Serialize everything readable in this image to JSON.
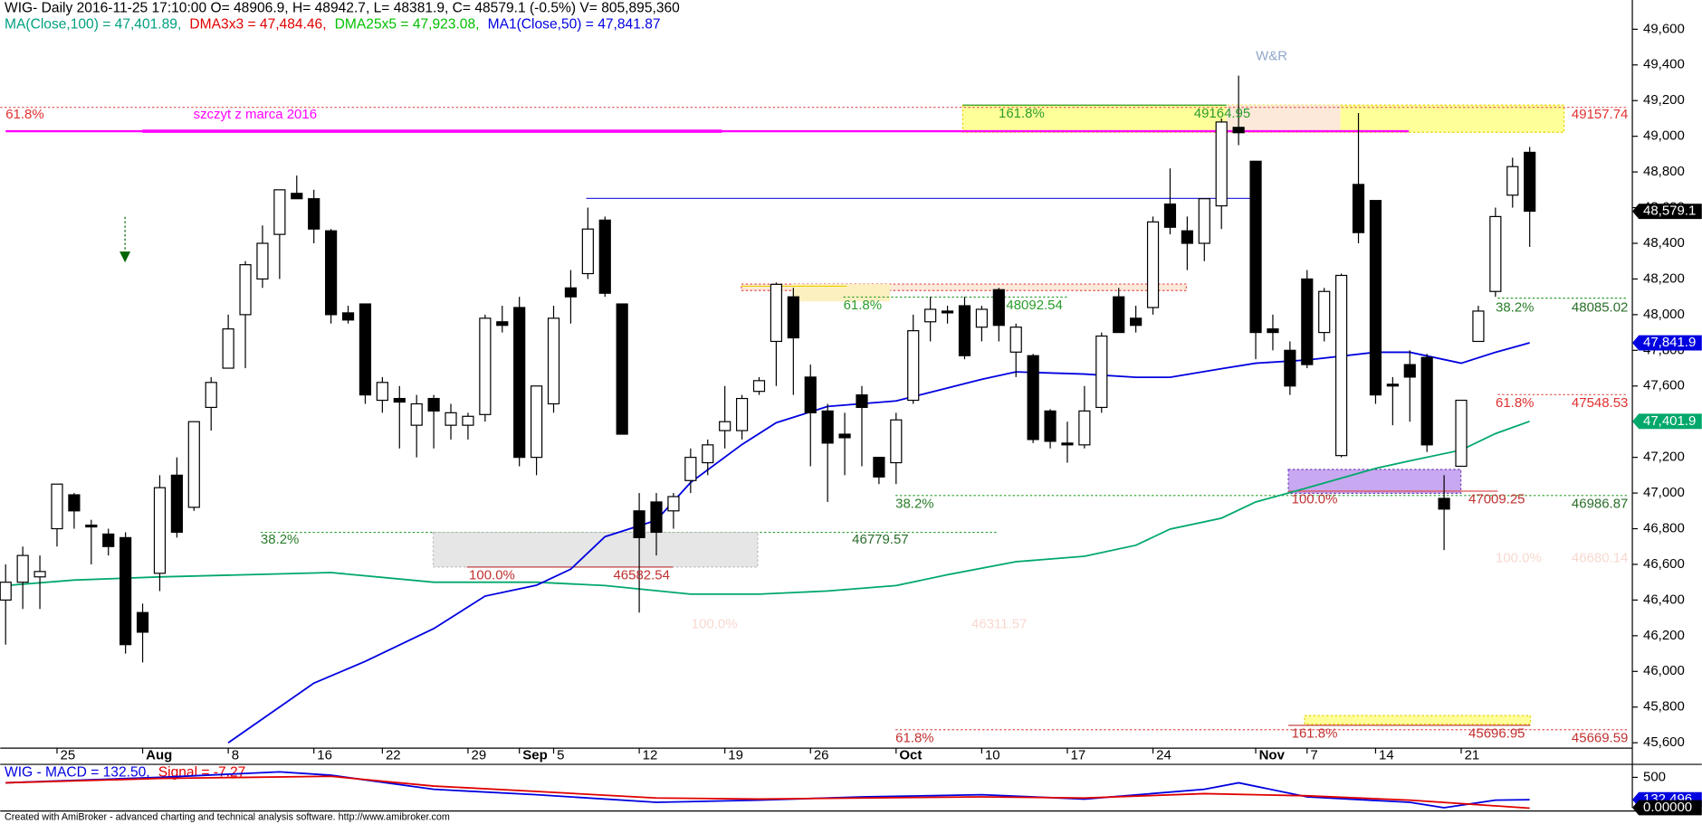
{
  "header": {
    "line1": "WIG- Daily 2016-11-25 17:10:00 O= 48906.9, H= 48942.7, L= 48381.9, C= 48579.1 (-0.5%) V= 805,895,360",
    "indicators": [
      "MA(Close,100) = 47,401.89,",
      "DMA3x3 = 47,484.46,",
      "DMA25x5 = 47,923.08,",
      "MA1(Close,50) = 47,841.87"
    ],
    "footer": "Created with AmiBroker - advanced charting and technical analysis software. http://www.amibroker.com"
  },
  "chart_data": [
    {
      "type": "candlestick",
      "open": [
        46400,
        46500,
        46530,
        46800,
        46990,
        46820,
        46770,
        46750,
        46330,
        46550,
        47100,
        46920,
        47480,
        47700,
        48000,
        48200,
        48450,
        48680,
        48650,
        48470,
        48010,
        48060,
        47520,
        47530,
        47380,
        47530,
        47380,
        47380,
        47440,
        47960,
        48040,
        47200,
        47500,
        48150,
        48230,
        48530,
        48060,
        46900,
        46950,
        46900,
        47070,
        47170,
        47350,
        47350,
        47570,
        47850,
        48100,
        47650,
        47460,
        47330,
        47550,
        47200,
        47170,
        47520,
        47960,
        48020,
        48050,
        47930,
        48140,
        47790,
        47770,
        47460,
        47280,
        47270,
        47480,
        48100,
        47980,
        48040,
        48620,
        48470,
        48400,
        48610,
        49050,
        48860,
        47920,
        47800,
        48200,
        47900,
        47210,
        48730,
        48640,
        47610,
        47720,
        47760,
        46970,
        47150,
        47850,
        48130,
        48670,
        48910
      ],
      "high": [
        46600,
        46700,
        46650,
        47050,
        47000,
        46850,
        46800,
        46780,
        46380,
        47100,
        47200,
        47400,
        47650,
        48000,
        48300,
        48500,
        48700,
        48780,
        48700,
        48480,
        48050,
        48060,
        47650,
        47600,
        47550,
        47550,
        47500,
        47450,
        48000,
        48050,
        48100,
        47600,
        48050,
        48250,
        48600,
        48550,
        48060,
        47000,
        47000,
        47000,
        47250,
        47300,
        47600,
        47550,
        47650,
        48180,
        48150,
        47720,
        47500,
        47450,
        47600,
        47200,
        47450,
        48000,
        48100,
        48050,
        48100,
        48050,
        48150,
        47950,
        47780,
        47470,
        47400,
        47600,
        47900,
        48150,
        48050,
        48550,
        48820,
        48550,
        48650,
        49100,
        49340,
        48860,
        48000,
        47850,
        48250,
        48150,
        48230,
        49130,
        48640,
        47650,
        47800,
        47780,
        47100,
        47520,
        48050,
        48600,
        48880,
        48940
      ],
      "low": [
        46150,
        46350,
        46350,
        46700,
        46800,
        46600,
        46650,
        46100,
        46050,
        46450,
        46750,
        46900,
        47350,
        47700,
        47700,
        48150,
        48200,
        48650,
        48400,
        47950,
        47950,
        47500,
        47450,
        47250,
        47200,
        47250,
        47300,
        47300,
        47400,
        47900,
        47150,
        47100,
        47450,
        47950,
        48200,
        48100,
        47330,
        46330,
        46650,
        46800,
        47000,
        47100,
        47250,
        47300,
        47550,
        47600,
        47550,
        47150,
        46950,
        47100,
        47150,
        47050,
        47050,
        47500,
        47850,
        47950,
        47750,
        47850,
        47850,
        47650,
        47280,
        47250,
        47170,
        47250,
        47450,
        47900,
        47900,
        48000,
        48450,
        48250,
        48300,
        48480,
        48950,
        47750,
        47800,
        47550,
        47700,
        47850,
        47200,
        48400,
        47500,
        47380,
        47400,
        47230,
        46680,
        47150,
        47850,
        48100,
        48600,
        48380
      ],
      "close": [
        46500,
        46650,
        46560,
        47050,
        46900,
        46810,
        46700,
        46150,
        46220,
        47030,
        46780,
        47400,
        47620,
        47920,
        48280,
        48400,
        48700,
        48650,
        48480,
        48000,
        47970,
        47550,
        47620,
        47510,
        47500,
        47460,
        47450,
        47430,
        47980,
        47940,
        47200,
        47600,
        47980,
        48100,
        48480,
        48120,
        47330,
        46750,
        46780,
        46980,
        47200,
        47270,
        47400,
        47530,
        47630,
        48170,
        47870,
        47450,
        47280,
        47310,
        47480,
        47090,
        47410,
        47910,
        48030,
        48010,
        47770,
        48030,
        47940,
        47930,
        47300,
        47290,
        47270,
        47460,
        47880,
        47900,
        47940,
        48520,
        48490,
        48400,
        48650,
        49080,
        49020,
        47900,
        47900,
        47600,
        47720,
        48130,
        48220,
        48460,
        47550,
        47600,
        47650,
        47270,
        46910,
        47520,
        48020,
        48550,
        48830,
        48580
      ],
      "series": [
        {
          "name": "MA(Close,100)",
          "color": "#00a86b",
          "x": [
            0,
            4,
            9,
            19,
            25,
            31,
            35,
            40,
            44,
            48,
            52,
            55,
            59,
            63,
            66,
            68,
            71,
            73,
            76,
            80,
            82,
            85,
            87,
            89
          ],
          "values": [
            46481,
            46512,
            46530,
            46554,
            46500,
            46500,
            46481,
            46433,
            46433,
            46451,
            46481,
            46542,
            46615,
            46645,
            46707,
            46798,
            46859,
            46950,
            47029,
            47138,
            47181,
            47241,
            47333,
            47402
          ]
        },
        {
          "name": "MA1(Close,50)",
          "color": "#0000e0",
          "x": [
            13,
            18,
            21,
            25,
            28,
            31,
            33,
            35,
            38,
            40,
            43,
            45,
            48,
            52,
            54,
            57,
            59,
            63,
            66,
            68,
            71,
            73,
            76,
            80,
            82,
            85,
            87,
            89
          ],
          "values": [
            45600,
            45934,
            46056,
            46240,
            46422,
            46483,
            46573,
            46755,
            46847,
            47059,
            47272,
            47394,
            47485,
            47516,
            47564,
            47637,
            47679,
            47667,
            47649,
            47649,
            47697,
            47728,
            47746,
            47789,
            47789,
            47728,
            47789,
            47842
          ]
        }
      ],
      "ylim": [
        45570,
        49764
      ],
      "yticks": [
        {
          "value": 45600,
          "label": "45,600"
        },
        {
          "value": 45800,
          "label": "45,800"
        },
        {
          "value": 46000,
          "label": "46,000"
        },
        {
          "value": 46200,
          "label": "46,200"
        },
        {
          "value": 46400,
          "label": "46,400"
        },
        {
          "value": 46600,
          "label": "46,600"
        },
        {
          "value": 46800,
          "label": "46,800"
        },
        {
          "value": 47000,
          "label": "47,000"
        },
        {
          "value": 47200,
          "label": "47,200"
        },
        {
          "value": 47400,
          "label": "47,400"
        },
        {
          "value": 47600,
          "label": "47,600"
        },
        {
          "value": 47800,
          "label": "47,800"
        },
        {
          "value": 48000,
          "label": "48,000"
        },
        {
          "value": 48200,
          "label": "48,200"
        },
        {
          "value": 48400,
          "label": "48,400"
        },
        {
          "value": 48600,
          "label": "48,600"
        },
        {
          "value": 48800,
          "label": "48,800"
        },
        {
          "value": 49000,
          "label": "49,000"
        },
        {
          "value": 49200,
          "label": "49,200"
        },
        {
          "value": 49400,
          "label": "49,400"
        },
        {
          "value": 49600,
          "label": "49,600"
        }
      ],
      "xticks": [
        {
          "value": 3,
          "label": "25"
        },
        {
          "value": 8,
          "label": "Aug"
        },
        {
          "value": 13,
          "label": "8"
        },
        {
          "value": 18,
          "label": "16"
        },
        {
          "value": 22,
          "label": "22"
        },
        {
          "value": 27,
          "label": "29"
        },
        {
          "value": 30,
          "label": "Sep"
        },
        {
          "value": 32,
          "label": "5"
        },
        {
          "value": 37,
          "label": "12"
        },
        {
          "value": 42,
          "label": "19"
        },
        {
          "value": 47,
          "label": "26"
        },
        {
          "value": 52,
          "label": "Oct"
        },
        {
          "value": 57,
          "label": "10"
        },
        {
          "value": 62,
          "label": "17"
        },
        {
          "value": 67,
          "label": "24"
        },
        {
          "value": 73,
          "label": "Nov"
        },
        {
          "value": 76,
          "label": "7"
        },
        {
          "value": 80,
          "label": "14"
        },
        {
          "value": 85,
          "label": "21"
        }
      ],
      "price_labels": [
        {
          "value": 48579.1,
          "label": "48,579.1",
          "color": "#000000"
        },
        {
          "value": 47841.87,
          "label": "47,841.9",
          "color": "#0000e0"
        },
        {
          "value": 47401.89,
          "label": "47,401.9",
          "color": "#00a86b"
        }
      ],
      "annotations": [
        "W&R",
        "61.8%",
        "szczyt z marca 2016",
        "161.8%",
        "49164.95",
        "49157.74",
        "61.8%",
        "48092.54",
        "38.2%",
        "48085.02",
        "61.8%",
        "47548.53",
        "38.2%",
        "100.0%",
        "47009.25",
        "46986.87",
        "38.2%",
        "46779.57",
        "100.0%",
        "46582.54",
        "100.0%",
        "46680.14",
        "100.0%",
        "46311.57",
        "161.8%",
        "45696.95",
        "61.8%",
        "45669.59"
      ]
    },
    {
      "type": "line",
      "title": "WIG - MACD = 132.50,",
      "subtitle": "Signal = -7.27",
      "series": [
        {
          "name": "MACD",
          "color": "#0000e0",
          "x": [
            0,
            9,
            16,
            19,
            25,
            31,
            38,
            44,
            50,
            57,
            63,
            70,
            72,
            76,
            82,
            84,
            87,
            89
          ],
          "values": [
            410,
            500,
            590,
            535,
            303,
            214,
            89,
            125,
            178,
            214,
            143,
            303,
            410,
            178,
            89,
            0,
            125,
            132.5
          ]
        },
        {
          "name": "Signal",
          "color": "#e00000",
          "x": [
            0,
            9,
            19,
            25,
            31,
            38,
            44,
            50,
            57,
            63,
            70,
            76,
            82,
            89
          ],
          "values": [
            410,
            482,
            518,
            357,
            268,
            160,
            143,
            160,
            178,
            160,
            232,
            196,
            125,
            -7.27
          ]
        }
      ],
      "ylim": [
        -54,
        696
      ],
      "yticks": [
        500
      ],
      "price_labels": [
        {
          "value": 132.496,
          "label": "132.496",
          "color": "#0000e0"
        },
        {
          "value": 0,
          "label": "0.00000",
          "color": "#000000"
        }
      ]
    }
  ]
}
